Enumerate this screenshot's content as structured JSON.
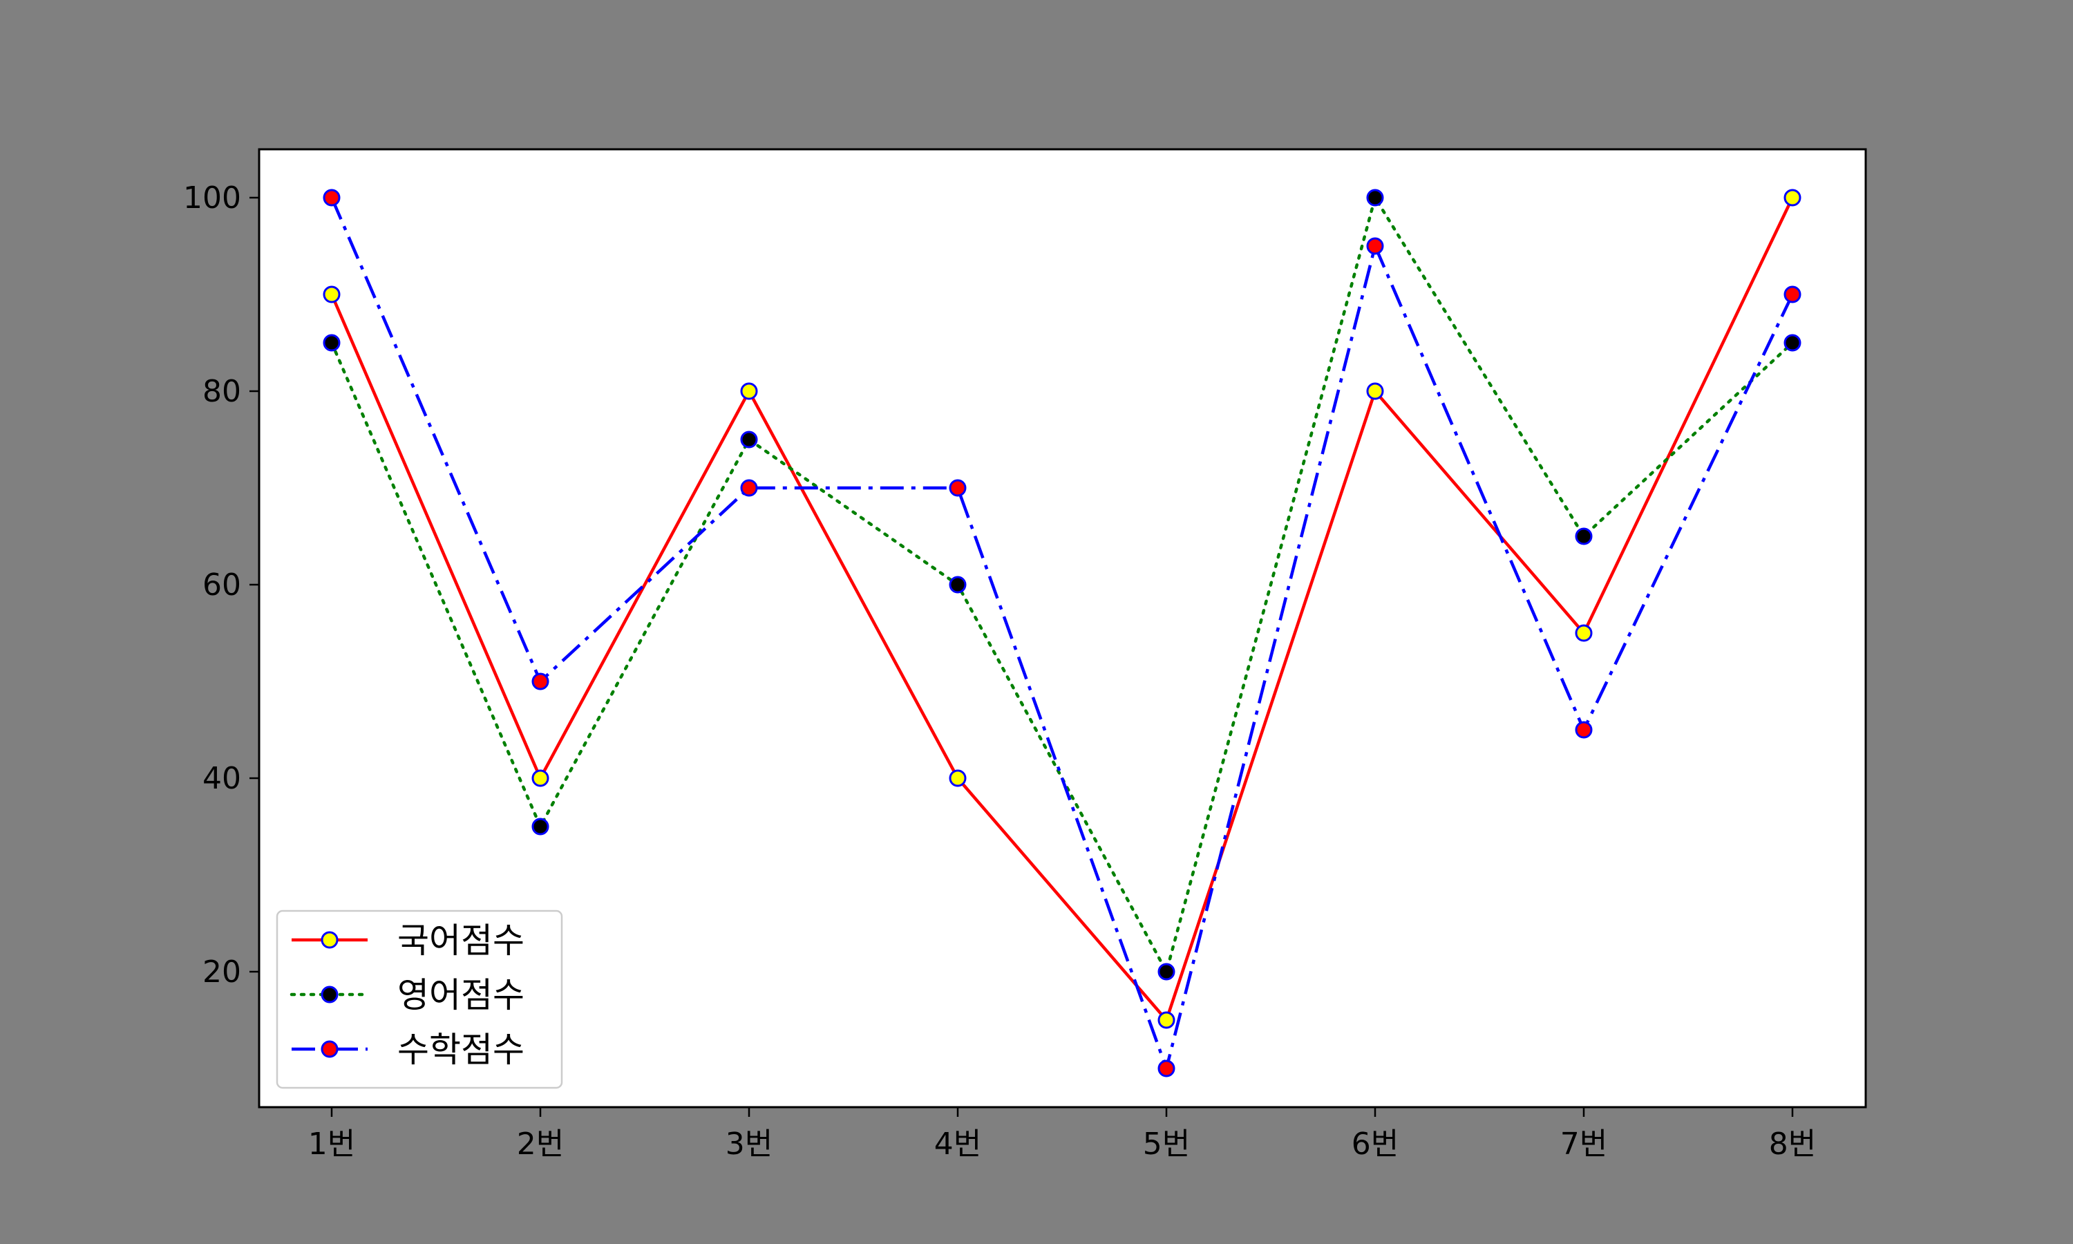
{
  "chart_data": {
    "type": "line",
    "categories": [
      "1번",
      "2번",
      "3번",
      "4번",
      "5번",
      "6번",
      "7번",
      "8번"
    ],
    "yticks": [
      20,
      40,
      60,
      80,
      100
    ],
    "ylim": [
      6,
      105
    ],
    "grid": false,
    "legend_position": "lower-left",
    "colors": {
      "figure_background": "#808080",
      "plot_background": "#ffffff",
      "axis": "#000000",
      "marker_edge": "#0000ff"
    },
    "series": [
      {
        "name": "국어점수",
        "values": [
          90,
          40,
          80,
          40,
          15,
          80,
          55,
          100
        ],
        "line_color": "#ff0000",
        "line_style": "solid",
        "marker_face": "#ffff00"
      },
      {
        "name": "영어점수",
        "values": [
          85,
          35,
          75,
          60,
          20,
          100,
          65,
          85
        ],
        "line_color": "#008000",
        "line_style": "dotted",
        "marker_face": "#000000"
      },
      {
        "name": "수학점수",
        "values": [
          100,
          50,
          70,
          70,
          10,
          95,
          45,
          90
        ],
        "line_color": "#0000ff",
        "line_style": "dashdot",
        "marker_face": "#ff0000"
      }
    ]
  }
}
